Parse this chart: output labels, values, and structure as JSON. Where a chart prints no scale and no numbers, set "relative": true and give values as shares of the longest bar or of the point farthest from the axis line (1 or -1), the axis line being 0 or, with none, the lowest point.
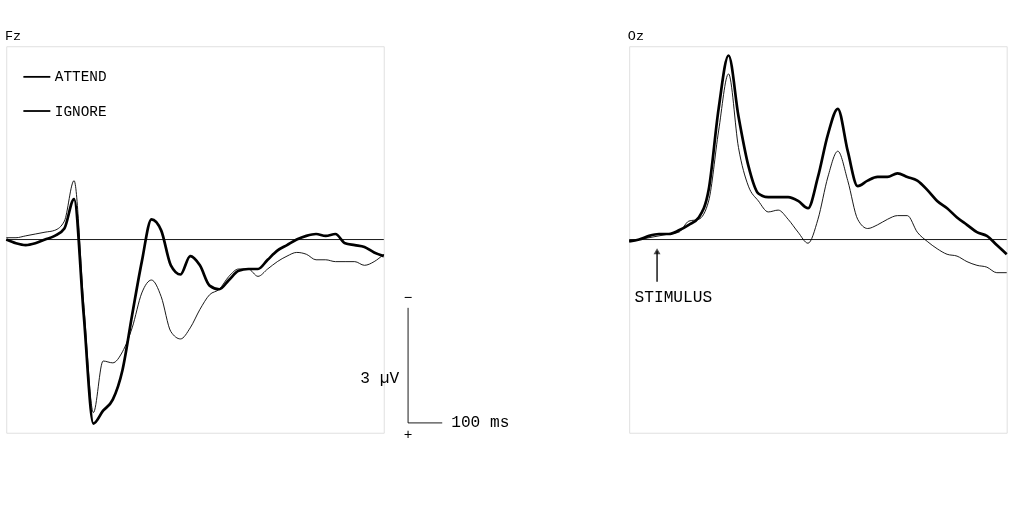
{
  "chart_data": [
    {
      "type": "line",
      "title": "Fz",
      "relative": true,
      "legend": "top left",
      "categories": [
        null,
        null,
        null,
        null,
        null,
        null,
        null,
        null,
        null,
        null,
        null,
        null,
        null,
        null,
        null,
        null,
        null,
        null,
        null,
        null,
        null,
        null,
        null,
        null,
        null,
        null,
        null,
        null,
        null,
        null,
        null,
        null,
        null,
        null,
        null,
        null,
        null,
        null,
        null,
        null
      ],
      "series": [
        {
          "name": "ATTEND",
          "color": "#000000",
          "values": [
            0.0,
            -0.02,
            -0.03,
            -0.02,
            0.0,
            0.02,
            0.06,
            0.22,
            -0.41,
            -1,
            -0.93,
            -0.87,
            -0.71,
            -0.41,
            -0.12,
            0.11,
            0.05,
            -0.14,
            -0.19,
            -0.09,
            -0.14,
            -0.25,
            -0.27,
            -0.22,
            -0.17,
            -0.16,
            -0.16,
            -0.11,
            -0.06,
            -0.03,
            0.0,
            0.02,
            0.03,
            0.02,
            0.03,
            -0.02,
            -0.03,
            -0.04,
            -0.07,
            -0.09
          ]
        },
        {
          "name": "IGNORE",
          "color": "#000000",
          "values": [
            0.01,
            0.01,
            0.02,
            0.03,
            0.04,
            0.05,
            0.1,
            0.32,
            -0.35,
            -0.94,
            -0.66,
            -0.67,
            -0.61,
            -0.48,
            -0.29,
            -0.22,
            -0.31,
            -0.5,
            -0.54,
            -0.48,
            -0.38,
            -0.3,
            -0.27,
            -0.2,
            -0.16,
            -0.16,
            -0.2,
            -0.16,
            -0.12,
            -0.09,
            -0.07,
            -0.08,
            -0.11,
            -0.11,
            -0.12,
            -0.12,
            -0.12,
            -0.14,
            -0.12,
            -0.08
          ]
        }
      ],
      "annotations": [
        "−",
        "+",
        "3 µV",
        "100 ms"
      ]
    },
    {
      "type": "line",
      "title": "Oz",
      "relative": true,
      "categories": [
        null,
        null,
        null,
        null,
        null,
        null,
        null,
        null,
        null,
        null,
        null,
        null,
        null,
        null,
        null,
        null,
        null,
        null,
        null,
        null,
        null,
        null,
        null,
        null,
        null,
        null,
        null,
        null,
        null,
        null,
        null,
        null,
        null,
        null,
        null,
        null,
        null,
        null,
        null
      ],
      "series": [
        {
          "color": "#000000",
          "values": [
            -0.01,
            0.0,
            0.02,
            0.03,
            0.03,
            0.05,
            0.08,
            0.12,
            0.27,
            0.71,
            1,
            0.67,
            0.4,
            0.25,
            0.23,
            0.23,
            0.23,
            0.21,
            0.17,
            0.34,
            0.57,
            0.71,
            0.48,
            0.29,
            0.32,
            0.34,
            0.34,
            0.36,
            0.34,
            0.32,
            0.27,
            0.21,
            0.17,
            0.12,
            0.08,
            0.04,
            0.02,
            -0.03,
            -0.08
          ]
        },
        {
          "color": "#000000",
          "values": [
            -0.01,
            0.0,
            0.01,
            0.02,
            0.03,
            0.04,
            0.1,
            0.11,
            0.21,
            0.59,
            0.9,
            0.5,
            0.29,
            0.21,
            0.15,
            0.16,
            0.11,
            0.04,
            -0.02,
            0.11,
            0.34,
            0.48,
            0.32,
            0.11,
            0.06,
            0.08,
            0.11,
            0.13,
            0.13,
            0.04,
            -0.01,
            -0.05,
            -0.08,
            -0.09,
            -0.12,
            -0.14,
            -0.15,
            -0.18,
            -0.18
          ]
        }
      ],
      "annotations": [
        "STIMULUS"
      ]
    }
  ]
}
